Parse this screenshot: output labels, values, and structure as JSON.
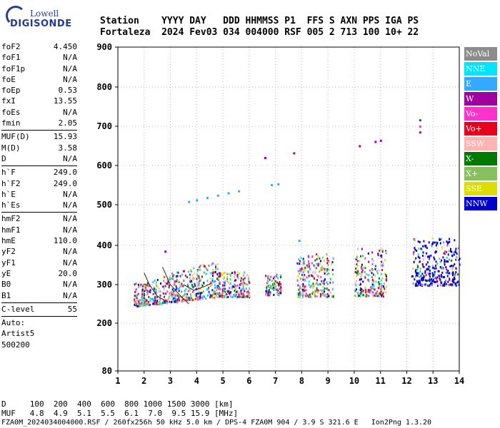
{
  "logo": {
    "top": "Lowell",
    "bottom": "DIGISONDE"
  },
  "header": {
    "line1": "Station    YYYY DAY   DDD HHMMSS P1  FFS S AXN PPS IGA PS",
    "line2": "Fortaleza  2024 Fev03 034 004000 RSF 005 2 713 100 10+ 22"
  },
  "params": [
    {
      "name": "foF2",
      "value": "4.450"
    },
    {
      "name": "foF1",
      "value": "N/A"
    },
    {
      "name": "foF1p",
      "value": "N/A"
    },
    {
      "name": "foE",
      "value": "N/A"
    },
    {
      "name": "foEp",
      "value": "0.53"
    },
    {
      "name": "fxI",
      "value": "13.55"
    },
    {
      "name": "foEs",
      "value": "N/A"
    },
    {
      "name": "fmin",
      "value": "2.05"
    },
    {
      "sep": true
    },
    {
      "name": "MUF(D)",
      "value": "15.93"
    },
    {
      "name": "M(D)",
      "value": "3.58"
    },
    {
      "name": "D",
      "value": "N/A"
    },
    {
      "sep": true
    },
    {
      "name": "h`F",
      "value": "249.0"
    },
    {
      "name": "h`F2",
      "value": "249.0"
    },
    {
      "name": "h`E",
      "value": "N/A"
    },
    {
      "name": "h`Es",
      "value": "N/A"
    },
    {
      "sep": true
    },
    {
      "name": "hmF2",
      "value": "N/A"
    },
    {
      "name": "hmF1",
      "value": "N/A"
    },
    {
      "name": "hmE",
      "value": "110.0"
    },
    {
      "name": "yF2",
      "value": "N/A"
    },
    {
      "name": "yF1",
      "value": "N/A"
    },
    {
      "name": "yE",
      "value": "20.0"
    },
    {
      "name": "B0",
      "value": "N/A"
    },
    {
      "name": "B1",
      "value": "N/A"
    },
    {
      "sep": true
    },
    {
      "name": "C-level",
      "value": "55"
    },
    {
      "sep": true
    },
    {
      "name": "Auto:",
      "value": ""
    },
    {
      "name": "Artist5",
      "value": ""
    },
    {
      "name": "500200",
      "value": ""
    }
  ],
  "footer": {
    "d_line": "D     100  200  400  600  800 1000 1500 3000 [km]",
    "muf_line": "MUF   4.8  4.9  5.1  5.5  6.1  7.0  9.5 15.9 [MHz]",
    "file_line": "FZA0M_2024034004000.RSF / 260fx256h 50 kHz 5.0 km / DPS-4 FZA0M 904 / 3.9 S 321.6 E   Ion2Png 1.3.20"
  },
  "legend": [
    {
      "label": "NoVal",
      "color": "#8c8c8c"
    },
    {
      "label": "NNE",
      "color": "#00e5ff"
    },
    {
      "label": "E",
      "color": "#33aaff"
    },
    {
      "label": "W",
      "color": "#a000a0"
    },
    {
      "label": "Vo-",
      "color": "#ff33cc"
    },
    {
      "label": "Vo+",
      "color": "#e8001c"
    },
    {
      "label": "SSW",
      "color": "#ffb3b3"
    },
    {
      "label": "X-",
      "color": "#007a00"
    },
    {
      "label": "X+",
      "color": "#88c060"
    },
    {
      "label": "SSE",
      "color": "#dddd00"
    },
    {
      "label": "NNW",
      "color": "#0000cc"
    }
  ],
  "chart_data": {
    "type": "scatter",
    "x_ticks": [
      1,
      2,
      3,
      4,
      5,
      6,
      7,
      8,
      9,
      10,
      11,
      12,
      13,
      14
    ],
    "y_ticks": [
      80,
      200,
      300,
      400,
      500,
      600,
      700,
      800,
      900
    ],
    "xlim": [
      1,
      14
    ],
    "ylim": [
      80,
      900
    ],
    "grid": true,
    "legend_position": "right",
    "series": [
      {
        "color": "#33aaff",
        "points": [
          [
            3.7,
            508
          ],
          [
            4.0,
            512
          ],
          [
            4.4,
            518
          ],
          [
            4.8,
            524
          ],
          [
            5.2,
            530
          ],
          [
            5.6,
            535
          ],
          [
            6.85,
            551
          ],
          [
            7.1,
            553
          ],
          [
            7.9,
            412
          ]
        ]
      },
      {
        "color": "#a000a0",
        "points": [
          [
            2.8,
            385
          ],
          [
            3.5,
            335
          ],
          [
            4.6,
            330
          ],
          [
            6.6,
            620
          ],
          [
            7.7,
            632
          ],
          [
            10.2,
            650
          ],
          [
            10.8,
            661
          ],
          [
            11.0,
            664
          ],
          [
            12.5,
            685
          ]
        ]
      },
      {
        "color": "#007a00",
        "points": [
          [
            12.5,
            716
          ]
        ]
      },
      {
        "color": "#ff33cc",
        "points": [
          [
            12.5,
            700
          ]
        ]
      },
      {
        "color": "#0000cc",
        "points": [
          [
            12.2,
            322
          ],
          [
            12.4,
            330
          ],
          [
            12.6,
            318
          ],
          [
            12.8,
            340
          ],
          [
            13.0,
            325
          ],
          [
            13.2,
            335
          ],
          [
            13.4,
            320
          ],
          [
            13.6,
            330
          ],
          [
            13.8,
            315
          ],
          [
            12.7,
            400
          ],
          [
            13.1,
            385
          ],
          [
            13.5,
            360
          ]
        ]
      }
    ],
    "clusters": [
      {
        "x": [
          1.6,
          4.8
        ],
        "y": [
          245,
          365
        ]
      },
      {
        "x": [
          4.8,
          6.0
        ],
        "y": [
          270,
          335
        ]
      },
      {
        "x": [
          6.6,
          7.2
        ],
        "y": [
          275,
          330
        ]
      },
      {
        "x": [
          7.8,
          9.2
        ],
        "y": [
          270,
          380
        ]
      },
      {
        "x": [
          10.0,
          11.2
        ],
        "y": [
          272,
          395
        ]
      },
      {
        "x": [
          12.2,
          14.0
        ],
        "y": [
          300,
          420
        ]
      }
    ]
  }
}
